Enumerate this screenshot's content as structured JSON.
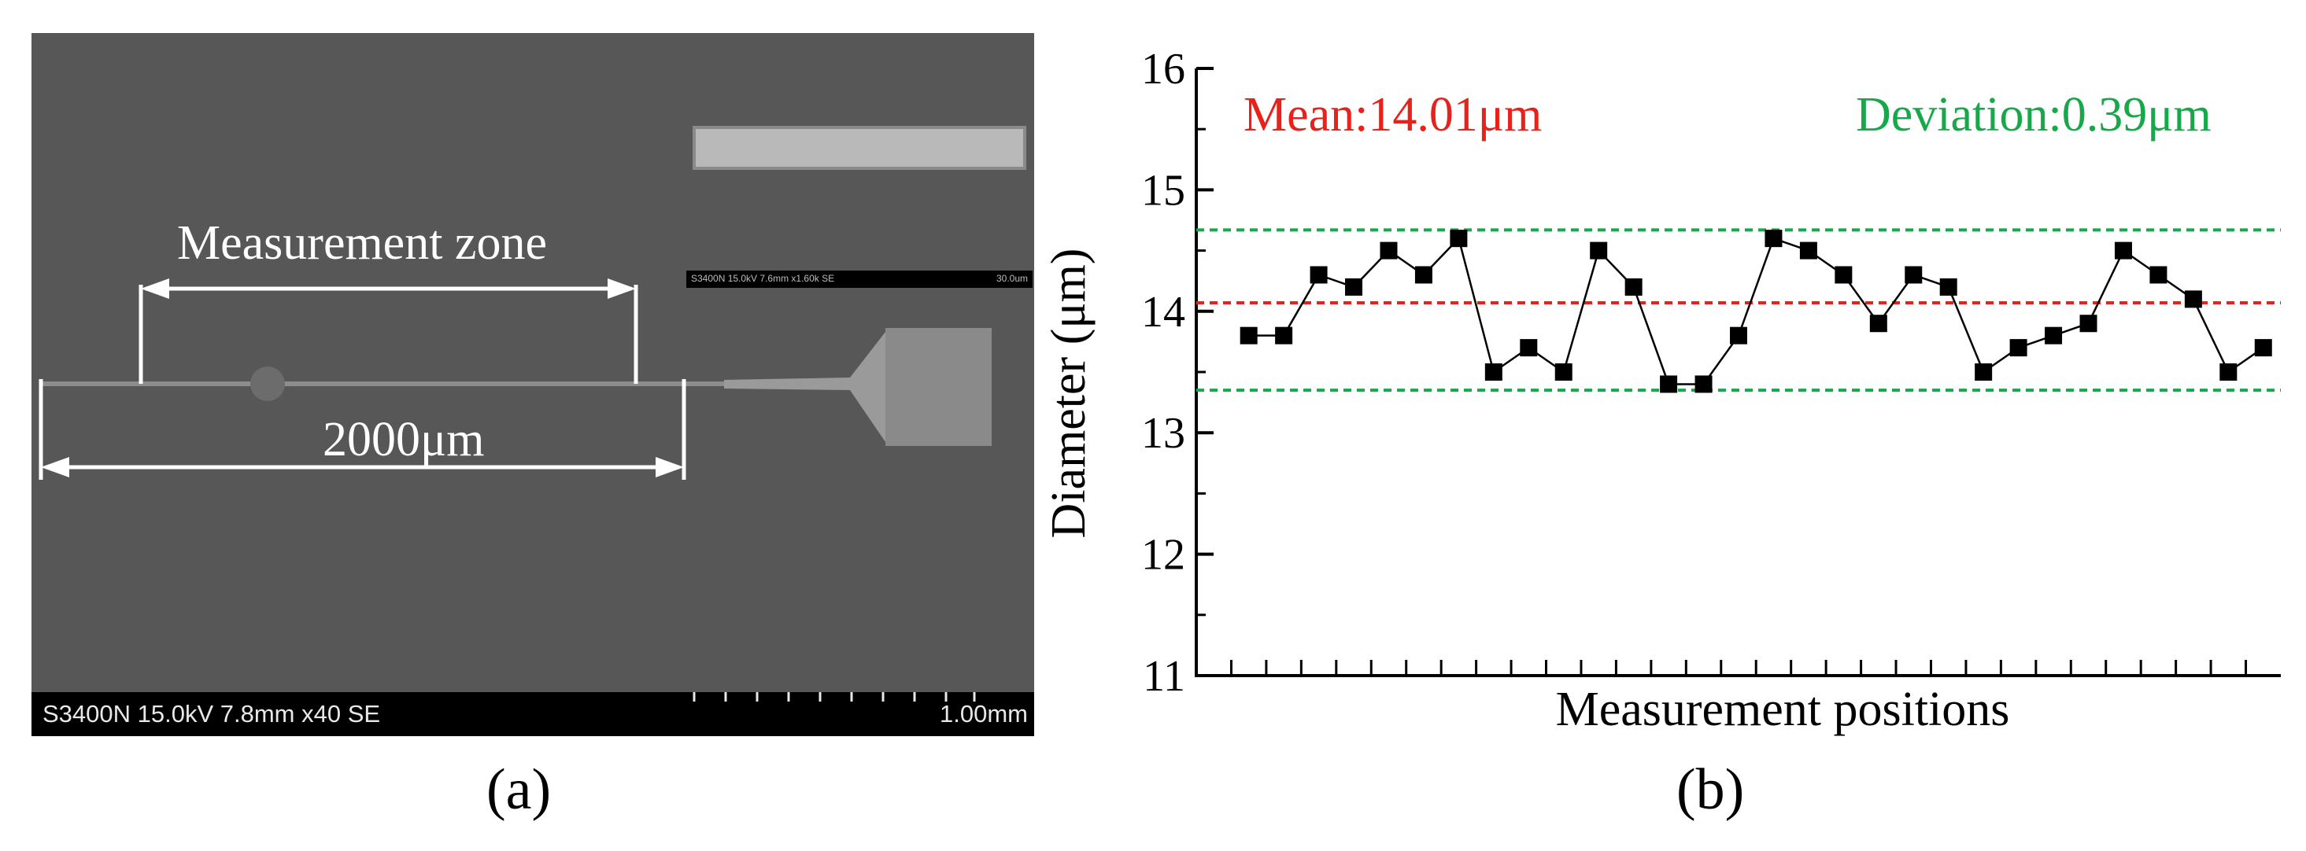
{
  "panel_a": {
    "label": "(a)",
    "zone_label": "Measurement zone",
    "length_label": "2000μm",
    "sem_info": "S3400N 15.0kV 7.8mm x40 SE",
    "sem_scale": "1.00mm",
    "inset_info": "S3400N 15.0kV 7.6mm x1.60k SE",
    "inset_scale": "30.0um",
    "colors": {
      "background": "#575757",
      "annotation": "#ffffff"
    }
  },
  "panel_b": {
    "label": "(b)"
  },
  "chart_data": {
    "type": "line",
    "title": "",
    "xlabel": "Measurement positions",
    "ylabel": "Diameter (μm)",
    "ylim": [
      11,
      16
    ],
    "yticks": [
      11,
      12,
      13,
      14,
      15,
      16
    ],
    "x_tick_count": 30,
    "grid": false,
    "series": [
      {
        "marker": "square",
        "color": "#000000",
        "x": [
          1,
          2,
          3,
          4,
          5,
          6,
          7,
          8,
          9,
          10,
          11,
          12,
          13,
          14,
          15,
          16,
          17,
          18,
          19,
          20,
          21,
          22,
          23,
          24,
          25,
          26,
          27,
          28,
          29,
          30
        ],
        "values": [
          13.8,
          13.8,
          14.3,
          14.2,
          14.5,
          14.3,
          14.6,
          13.5,
          13.7,
          13.5,
          14.5,
          14.2,
          13.4,
          13.4,
          13.8,
          14.6,
          14.5,
          14.3,
          13.9,
          14.3,
          14.2,
          13.5,
          13.7,
          13.8,
          13.9,
          14.5,
          14.3,
          14.1,
          13.5,
          13.7
        ]
      }
    ],
    "reference_lines": [
      {
        "y": 14.67,
        "color": "#17a84a",
        "style": "dashed"
      },
      {
        "y": 14.07,
        "color": "#e8211a",
        "style": "dashed"
      },
      {
        "y": 13.35,
        "color": "#17a84a",
        "style": "dashed"
      }
    ],
    "annotations": {
      "mean": "Mean:14.01μm",
      "deviation": "Deviation:0.39μm"
    }
  }
}
